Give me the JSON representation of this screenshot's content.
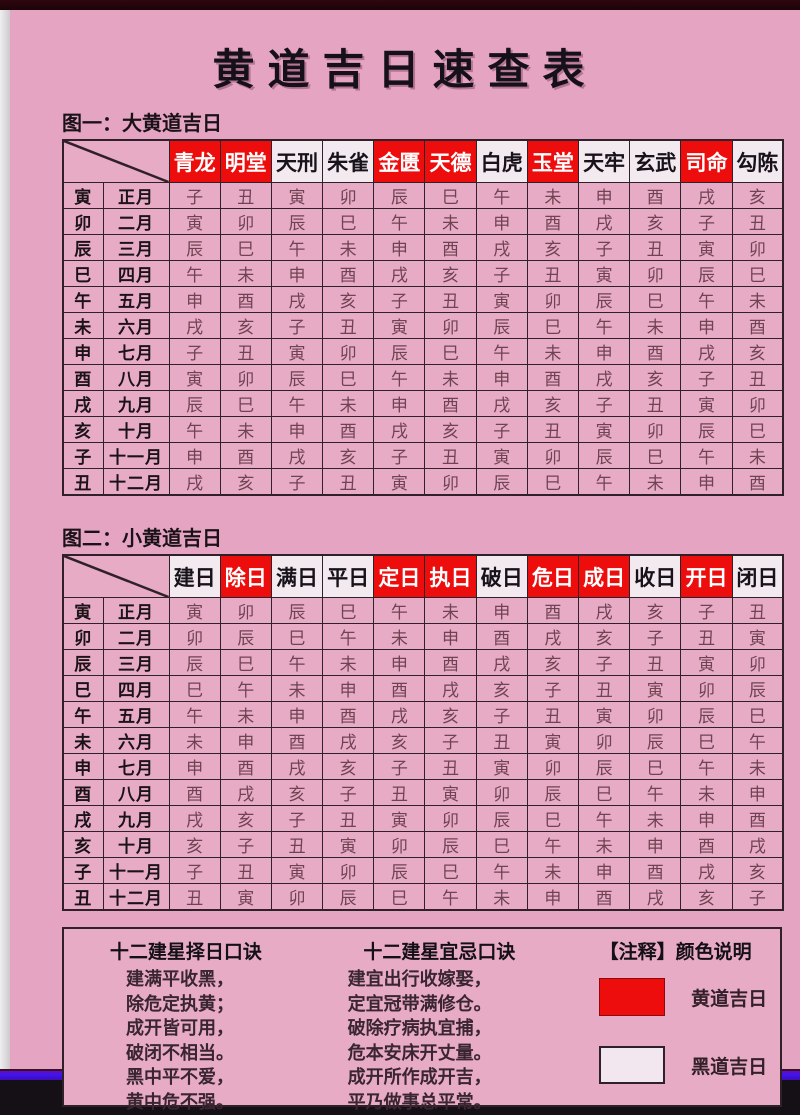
{
  "title": "黄道吉日速查表",
  "colors": {
    "accent_red": "#ee0d0d",
    "page_pink": "#e5a5c2",
    "header_white": "#f3eaf0",
    "border_dark": "#30202a",
    "bottom_bar_purple": "#4c08b4",
    "bottom_bar_blue": "#3d17e8"
  },
  "table1": {
    "label": "图一：大黄道吉日",
    "headers": [
      {
        "label": "青龙",
        "red": true
      },
      {
        "label": "明堂",
        "red": true
      },
      {
        "label": "天刑",
        "red": false
      },
      {
        "label": "朱雀",
        "red": false
      },
      {
        "label": "金匮",
        "red": true
      },
      {
        "label": "天德",
        "red": true
      },
      {
        "label": "白虎",
        "red": false
      },
      {
        "label": "玉堂",
        "red": true
      },
      {
        "label": "天牢",
        "red": false
      },
      {
        "label": "玄武",
        "red": false
      },
      {
        "label": "司命",
        "red": true
      },
      {
        "label": "勾陈",
        "red": false
      }
    ],
    "rows": [
      {
        "branch": "寅",
        "month": "正月",
        "cells": [
          "子",
          "丑",
          "寅",
          "卯",
          "辰",
          "巳",
          "午",
          "未",
          "申",
          "酉",
          "戌",
          "亥"
        ]
      },
      {
        "branch": "卯",
        "month": "二月",
        "cells": [
          "寅",
          "卯",
          "辰",
          "巳",
          "午",
          "未",
          "申",
          "酉",
          "戌",
          "亥",
          "子",
          "丑"
        ]
      },
      {
        "branch": "辰",
        "month": "三月",
        "cells": [
          "辰",
          "巳",
          "午",
          "未",
          "申",
          "酉",
          "戌",
          "亥",
          "子",
          "丑",
          "寅",
          "卯"
        ]
      },
      {
        "branch": "巳",
        "month": "四月",
        "cells": [
          "午",
          "未",
          "申",
          "酉",
          "戌",
          "亥",
          "子",
          "丑",
          "寅",
          "卯",
          "辰",
          "巳"
        ]
      },
      {
        "branch": "午",
        "month": "五月",
        "cells": [
          "申",
          "酉",
          "戌",
          "亥",
          "子",
          "丑",
          "寅",
          "卯",
          "辰",
          "巳",
          "午",
          "未"
        ]
      },
      {
        "branch": "未",
        "month": "六月",
        "cells": [
          "戌",
          "亥",
          "子",
          "丑",
          "寅",
          "卯",
          "辰",
          "巳",
          "午",
          "未",
          "申",
          "酉"
        ]
      },
      {
        "branch": "申",
        "month": "七月",
        "cells": [
          "子",
          "丑",
          "寅",
          "卯",
          "辰",
          "巳",
          "午",
          "未",
          "申",
          "酉",
          "戌",
          "亥"
        ]
      },
      {
        "branch": "酉",
        "month": "八月",
        "cells": [
          "寅",
          "卯",
          "辰",
          "巳",
          "午",
          "未",
          "申",
          "酉",
          "戌",
          "亥",
          "子",
          "丑"
        ]
      },
      {
        "branch": "戌",
        "month": "九月",
        "cells": [
          "辰",
          "巳",
          "午",
          "未",
          "申",
          "酉",
          "戌",
          "亥",
          "子",
          "丑",
          "寅",
          "卯"
        ]
      },
      {
        "branch": "亥",
        "month": "十月",
        "cells": [
          "午",
          "未",
          "申",
          "酉",
          "戌",
          "亥",
          "子",
          "丑",
          "寅",
          "卯",
          "辰",
          "巳"
        ]
      },
      {
        "branch": "子",
        "month": "十一月",
        "cells": [
          "申",
          "酉",
          "戌",
          "亥",
          "子",
          "丑",
          "寅",
          "卯",
          "辰",
          "巳",
          "午",
          "未"
        ]
      },
      {
        "branch": "丑",
        "month": "十二月",
        "cells": [
          "戌",
          "亥",
          "子",
          "丑",
          "寅",
          "卯",
          "辰",
          "巳",
          "午",
          "未",
          "申",
          "酉"
        ]
      }
    ]
  },
  "table2": {
    "label": "图二：小黄道吉日",
    "headers": [
      {
        "label": "建日",
        "red": false
      },
      {
        "label": "除日",
        "red": true
      },
      {
        "label": "满日",
        "red": false
      },
      {
        "label": "平日",
        "red": false
      },
      {
        "label": "定日",
        "red": true
      },
      {
        "label": "执日",
        "red": true
      },
      {
        "label": "破日",
        "red": false
      },
      {
        "label": "危日",
        "red": true
      },
      {
        "label": "成日",
        "red": true
      },
      {
        "label": "收日",
        "red": false
      },
      {
        "label": "开日",
        "red": true
      },
      {
        "label": "闭日",
        "red": false
      }
    ],
    "rows": [
      {
        "branch": "寅",
        "month": "正月",
        "cells": [
          "寅",
          "卯",
          "辰",
          "巳",
          "午",
          "未",
          "申",
          "酉",
          "戌",
          "亥",
          "子",
          "丑"
        ]
      },
      {
        "branch": "卯",
        "month": "二月",
        "cells": [
          "卯",
          "辰",
          "巳",
          "午",
          "未",
          "申",
          "酉",
          "戌",
          "亥",
          "子",
          "丑",
          "寅"
        ]
      },
      {
        "branch": "辰",
        "month": "三月",
        "cells": [
          "辰",
          "巳",
          "午",
          "未",
          "申",
          "酉",
          "戌",
          "亥",
          "子",
          "丑",
          "寅",
          "卯"
        ]
      },
      {
        "branch": "巳",
        "month": "四月",
        "cells": [
          "巳",
          "午",
          "未",
          "申",
          "酉",
          "戌",
          "亥",
          "子",
          "丑",
          "寅",
          "卯",
          "辰"
        ]
      },
      {
        "branch": "午",
        "month": "五月",
        "cells": [
          "午",
          "未",
          "申",
          "酉",
          "戌",
          "亥",
          "子",
          "丑",
          "寅",
          "卯",
          "辰",
          "巳"
        ]
      },
      {
        "branch": "未",
        "month": "六月",
        "cells": [
          "未",
          "申",
          "酉",
          "戌",
          "亥",
          "子",
          "丑",
          "寅",
          "卯",
          "辰",
          "巳",
          "午"
        ]
      },
      {
        "branch": "申",
        "month": "七月",
        "cells": [
          "申",
          "酉",
          "戌",
          "亥",
          "子",
          "丑",
          "寅",
          "卯",
          "辰",
          "巳",
          "午",
          "未"
        ]
      },
      {
        "branch": "酉",
        "month": "八月",
        "cells": [
          "酉",
          "戌",
          "亥",
          "子",
          "丑",
          "寅",
          "卯",
          "辰",
          "巳",
          "午",
          "未",
          "申"
        ]
      },
      {
        "branch": "戌",
        "month": "九月",
        "cells": [
          "戌",
          "亥",
          "子",
          "丑",
          "寅",
          "卯",
          "辰",
          "巳",
          "午",
          "未",
          "申",
          "酉"
        ]
      },
      {
        "branch": "亥",
        "month": "十月",
        "cells": [
          "亥",
          "子",
          "丑",
          "寅",
          "卯",
          "辰",
          "巳",
          "午",
          "未",
          "申",
          "酉",
          "戌"
        ]
      },
      {
        "branch": "子",
        "month": "十一月",
        "cells": [
          "子",
          "丑",
          "寅",
          "卯",
          "辰",
          "巳",
          "午",
          "未",
          "申",
          "酉",
          "戌",
          "亥"
        ]
      },
      {
        "branch": "丑",
        "month": "十二月",
        "cells": [
          "丑",
          "寅",
          "卯",
          "辰",
          "巳",
          "午",
          "未",
          "申",
          "酉",
          "戌",
          "亥",
          "子"
        ]
      }
    ]
  },
  "notes": {
    "col1": {
      "title": "十二建星择日口诀",
      "lines": [
        "建满平收黑，",
        "除危定执黄；",
        "成开皆可用，",
        "破闭不相当。",
        "黑中平不爱，",
        "黄中危不强。"
      ]
    },
    "col2": {
      "title": "十二建星宜忌口诀",
      "lines": [
        "建宜出行收嫁娶，",
        "定宜冠带满修仓。",
        "破除疗病执宜捕，",
        "危本安床开丈量。",
        "成开所作成开吉，",
        "平乃做事总平常。"
      ]
    },
    "legend": {
      "title": "【注释】颜色说明",
      "items": [
        {
          "swatch": "red",
          "label": "黄道吉日"
        },
        {
          "swatch": "white",
          "label": "黑道吉日"
        }
      ]
    }
  }
}
